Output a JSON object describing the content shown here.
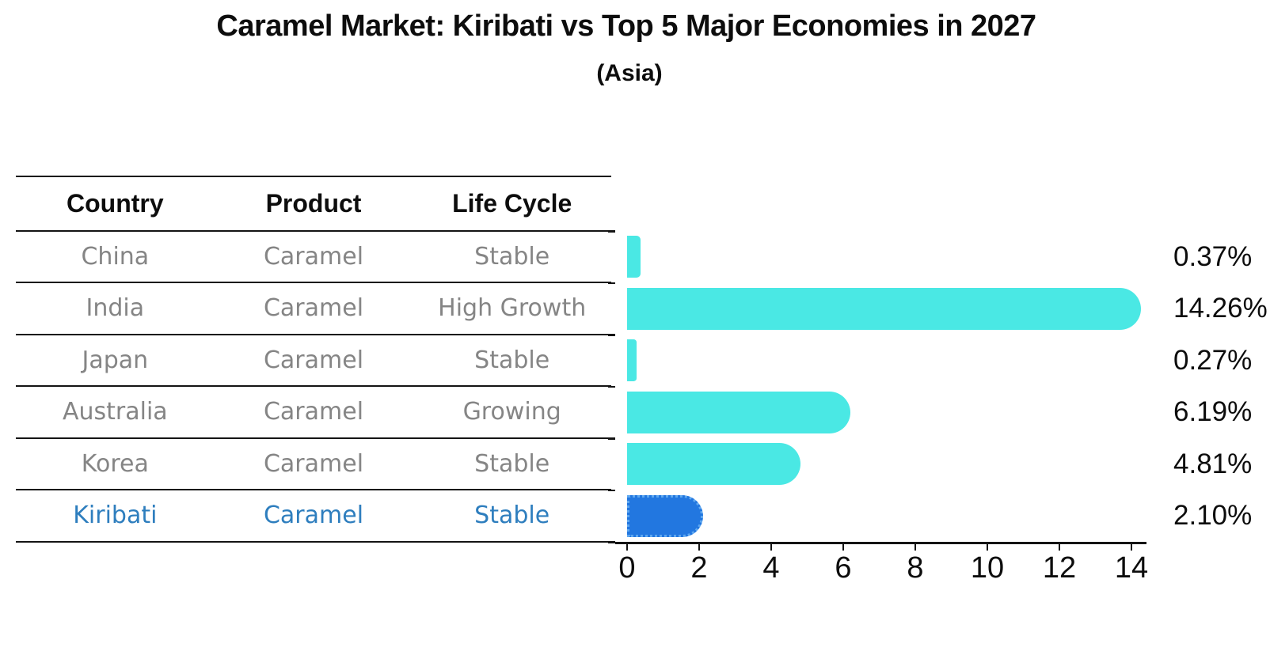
{
  "title": "Caramel Market: Kiribati vs Top 5 Major Economies in 2027",
  "subtitle": "(Asia)",
  "table": {
    "headers": [
      "Country",
      "Product",
      "Life Cycle"
    ],
    "rows": [
      {
        "country": "China",
        "product": "Caramel",
        "life_cycle": "Stable",
        "highlighted": false
      },
      {
        "country": "India",
        "product": "Caramel",
        "life_cycle": "High Growth",
        "highlighted": false
      },
      {
        "country": "Japan",
        "product": "Caramel",
        "life_cycle": "Stable",
        "highlighted": false
      },
      {
        "country": "Australia",
        "product": "Caramel",
        "life_cycle": "Growing",
        "highlighted": false
      },
      {
        "country": "Korea",
        "product": "Caramel",
        "life_cycle": "Stable",
        "highlighted": false
      },
      {
        "country": "Kiribati",
        "product": "Caramel",
        "life_cycle": "Stable",
        "highlighted": true
      }
    ]
  },
  "chart_data": {
    "type": "bar",
    "orientation": "horizontal",
    "title": "Caramel Market: Kiribati vs Top 5 Major Economies in 2027",
    "subtitle": "(Asia)",
    "categories": [
      "China",
      "India",
      "Japan",
      "Australia",
      "Korea",
      "Kiribati"
    ],
    "values": [
      0.37,
      14.26,
      0.27,
      6.19,
      4.81,
      2.1
    ],
    "value_labels": [
      "0.37%",
      "14.26%",
      "0.27%",
      "6.19%",
      "4.81%",
      "2.10%"
    ],
    "x_ticks": [
      0,
      2,
      4,
      6,
      8,
      10,
      12,
      14
    ],
    "xlim": [
      0,
      14.4
    ],
    "grid": false,
    "legend": false,
    "highlight_index": 5,
    "bar_color": "#4AE8E4",
    "highlight_bar_color": "#2277E0",
    "highlight_border_color": "#5FA8F0",
    "highlight_text_color": "#2E7EBE"
  },
  "colors": {
    "background": "#ffffff",
    "text": "#0d0d0d",
    "table_text": "#858585",
    "rule": "#141414"
  }
}
